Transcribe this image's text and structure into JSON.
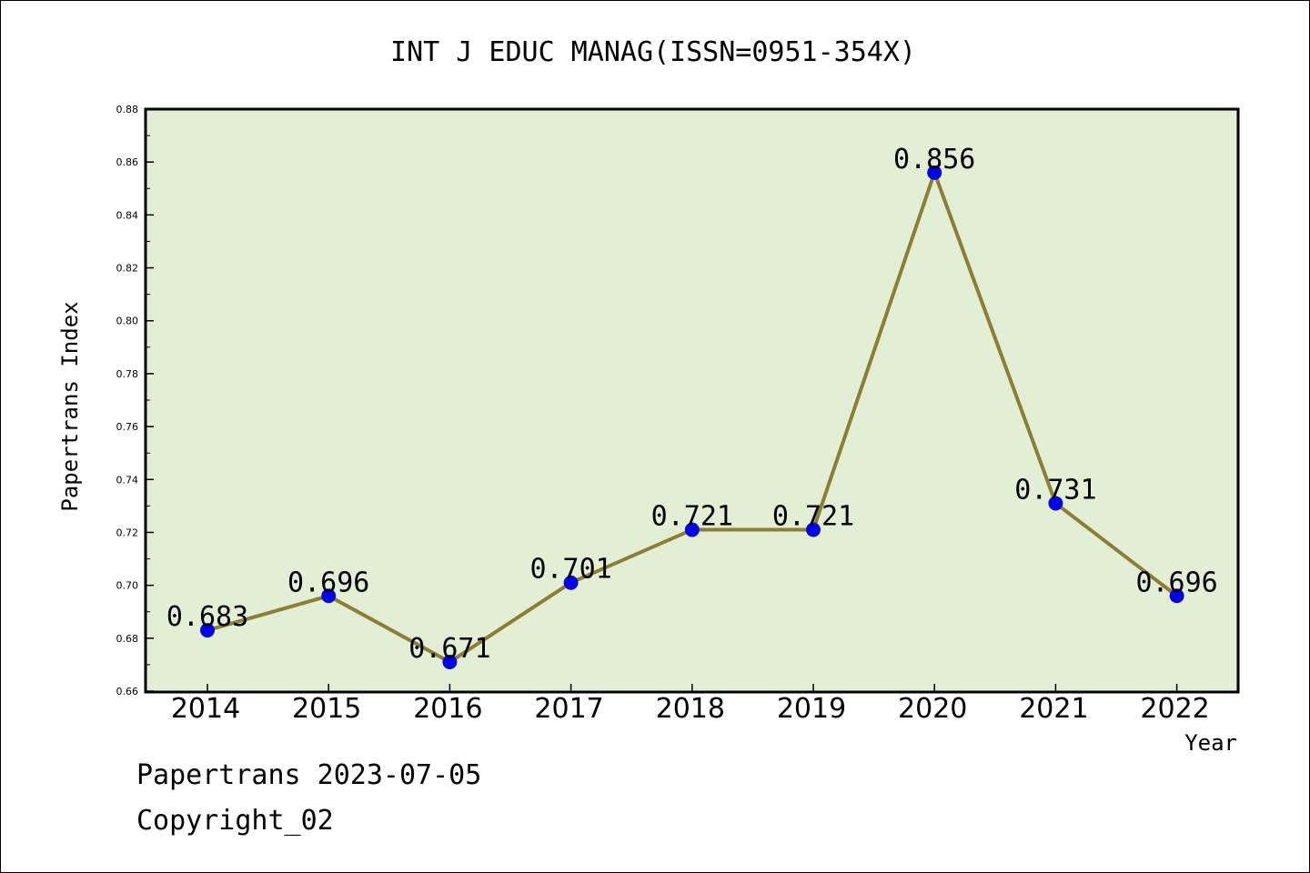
{
  "chart_data": {
    "type": "line",
    "title": "INT J EDUC MANAG(ISSN=0951-354X)",
    "xlabel": "Year",
    "ylabel": "Papertrans Index",
    "categories": [
      "2014",
      "2015",
      "2016",
      "2017",
      "2018",
      "2019",
      "2020",
      "2021",
      "2022"
    ],
    "values": [
      0.683,
      0.696,
      0.671,
      0.701,
      0.721,
      0.721,
      0.856,
      0.731,
      0.696
    ],
    "data_labels": [
      "0.683",
      "0.696",
      "0.671",
      "0.701",
      "0.721",
      "0.721",
      "0.856",
      "0.731",
      "0.696"
    ],
    "ylim": [
      0.66,
      0.88
    ],
    "yticks": [
      "0.66",
      "0.68",
      "0.70",
      "0.72",
      "0.74",
      "0.76",
      "0.78",
      "0.80",
      "0.82",
      "0.84",
      "0.86",
      "0.88"
    ],
    "grid": false,
    "colors": {
      "plot_background": "#e2efd5",
      "line": "#8c7e35",
      "marker": "#0000ff"
    }
  },
  "footer": {
    "source": "Papertrans 2023-07-05",
    "copyright": "Copyright_02"
  }
}
